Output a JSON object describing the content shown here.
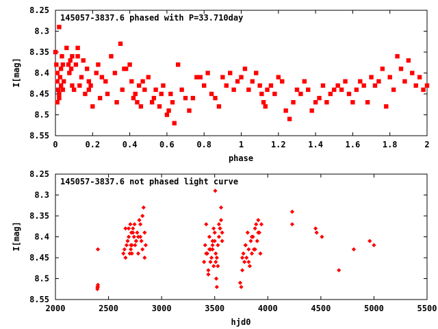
{
  "chart_data": [
    {
      "type": "scatter",
      "title": "145057-3837.6 phased with P=33.710day",
      "xlabel": "phase",
      "ylabel": "I[mag]",
      "xlim": [
        0,
        2
      ],
      "ylim": [
        8.55,
        8.25
      ],
      "y_inverted": true,
      "xticks": [
        "0",
        "0.2",
        "0.4",
        "0.6",
        "0.8",
        "1",
        "1.2",
        "1.4",
        "1.6",
        "1.8",
        "2"
      ],
      "yticks": [
        "8.25",
        "8.3",
        "8.35",
        "8.4",
        "8.45",
        "8.5",
        "8.55"
      ],
      "grid": false,
      "marker_color": "#ff0000",
      "series": [
        {
          "x": [
            0.0,
            0.005,
            0.01,
            0.01,
            0.015,
            0.02,
            0.02,
            0.025,
            0.03,
            0.03,
            0.035,
            0.04,
            0.04,
            0.045,
            0.02,
            0.01,
            0.06,
            0.07,
            0.08,
            0.075,
            0.085,
            0.09,
            0.09,
            0.1,
            0.11,
            0.12,
            0.12,
            0.13,
            0.14,
            0.15,
            0.16,
            0.17,
            0.18,
            0.19,
            0.2,
            0.18,
            0.22,
            0.23,
            0.24,
            0.25,
            0.27,
            0.28,
            0.3,
            0.32,
            0.33,
            0.35,
            0.36,
            0.37,
            0.38,
            0.4,
            0.41,
            0.42,
            0.43,
            0.44,
            0.45,
            0.46,
            0.47,
            0.48,
            0.5,
            0.52,
            0.53,
            0.54,
            0.56,
            0.57,
            0.58,
            0.6,
            0.61,
            0.62,
            0.63,
            0.64,
            0.66,
            0.68,
            0.7,
            0.72,
            0.74,
            0.76,
            0.78,
            0.8,
            0.82,
            0.84,
            0.86,
            0.88,
            0.9,
            0.92,
            0.94,
            0.96,
            0.98,
            1.0,
            1.02,
            1.04,
            1.06,
            1.08,
            1.1,
            1.11,
            1.12,
            1.13,
            1.14,
            1.16,
            1.18,
            1.2,
            1.22,
            1.24,
            1.26,
            1.28,
            1.3,
            1.32,
            1.34,
            1.36,
            1.38,
            1.4,
            1.42,
            1.44,
            1.46,
            1.48,
            1.5,
            1.52,
            1.54,
            1.56,
            1.58,
            1.6,
            1.62,
            1.64,
            1.66,
            1.68,
            1.7,
            1.72,
            1.74,
            1.76,
            1.78,
            1.8,
            1.82,
            1.84,
            1.86,
            1.88,
            1.9,
            1.92,
            1.94,
            1.96,
            1.98,
            2.0
          ],
          "y": [
            8.35,
            8.38,
            8.4,
            8.42,
            8.44,
            8.46,
            8.29,
            8.41,
            8.39,
            8.43,
            8.36,
            8.38,
            8.44,
            8.42,
            8.45,
            8.47,
            8.34,
            8.38,
            8.37,
            8.4,
            8.39,
            8.36,
            8.43,
            8.44,
            8.38,
            8.34,
            8.36,
            8.43,
            8.41,
            8.37,
            8.45,
            8.39,
            8.42,
            8.43,
            8.48,
            8.44,
            8.4,
            8.38,
            8.46,
            8.41,
            8.42,
            8.45,
            8.36,
            8.4,
            8.47,
            8.33,
            8.44,
            8.39,
            8.39,
            8.38,
            8.42,
            8.46,
            8.45,
            8.47,
            8.43,
            8.48,
            8.42,
            8.44,
            8.41,
            8.47,
            8.46,
            8.44,
            8.48,
            8.45,
            8.43,
            8.5,
            8.49,
            8.45,
            8.47,
            8.52,
            8.38,
            8.44,
            8.46,
            8.49,
            8.46,
            8.41,
            8.41,
            8.43,
            8.4,
            8.45,
            8.46,
            8.48,
            8.41,
            8.43,
            8.4,
            8.44,
            8.42,
            8.41,
            8.39,
            8.44,
            8.42,
            8.4,
            8.43,
            8.45,
            8.47,
            8.48,
            8.44,
            8.43,
            8.45,
            8.41,
            8.42,
            8.49,
            8.51,
            8.47,
            8.44,
            8.45,
            8.42,
            8.44,
            8.49,
            8.47,
            8.46,
            8.43,
            8.47,
            8.45,
            8.44,
            8.43,
            8.44,
            8.42,
            8.45,
            8.47,
            8.44,
            8.42,
            8.43,
            8.47,
            8.41,
            8.43,
            8.42,
            8.39,
            8.48,
            8.41,
            8.44,
            8.36,
            8.39,
            8.42,
            8.37,
            8.4,
            8.43,
            8.41,
            8.44,
            8.43
          ]
        }
      ]
    },
    {
      "type": "scatter",
      "title": "145057-3837.6 not phased light curve",
      "xlabel": "hjd0",
      "ylabel": "I[mag]",
      "xlim": [
        2000,
        5500
      ],
      "ylim": [
        8.55,
        8.25
      ],
      "y_inverted": true,
      "xticks": [
        "2000",
        "2500",
        "3000",
        "3500",
        "4000",
        "4500",
        "5000",
        "5500"
      ],
      "yticks": [
        "8.25",
        "8.3",
        "8.35",
        "8.4",
        "8.45",
        "8.5",
        "8.55"
      ],
      "grid": false,
      "marker_color": "#ff0000",
      "series": [
        {
          "x": [
            2395,
            2395,
            2400,
            2400,
            2400,
            2640,
            2650,
            2660,
            2670,
            2680,
            2690,
            2700,
            2705,
            2710,
            2715,
            2720,
            2730,
            2740,
            2745,
            2750,
            2760,
            2770,
            2780,
            2790,
            2800,
            2810,
            2820,
            2830,
            2840,
            2850,
            2660,
            2690,
            2710,
            2730,
            2760,
            2780,
            2800,
            2820,
            2840,
            2720,
            3400,
            3410,
            3420,
            3430,
            3440,
            3450,
            3460,
            3470,
            3480,
            3490,
            3500,
            3505,
            3510,
            3515,
            3520,
            3530,
            3540,
            3550,
            3560,
            3570,
            3420,
            3440,
            3460,
            3480,
            3500,
            3520,
            3540,
            3560,
            3450,
            3490,
            3530,
            3570,
            3480,
            3510,
            3550,
            3740,
            3750,
            3760,
            3770,
            3780,
            3790,
            3800,
            3810,
            3820,
            3830,
            3840,
            3850,
            3860,
            3870,
            3880,
            3890,
            3900,
            3910,
            3920,
            3930,
            3760,
            3790,
            3820,
            3850,
            3880,
            3910,
            3940,
            4230,
            4230,
            4450,
            4460,
            4510,
            4670,
            4810,
            4960,
            5000
          ],
          "y": [
            8.52,
            8.525,
            8.515,
            8.43,
            8.52,
            8.44,
            8.43,
            8.38,
            8.42,
            8.41,
            8.4,
            8.44,
            8.37,
            8.43,
            8.39,
            8.42,
            8.38,
            8.4,
            8.37,
            8.42,
            8.41,
            8.39,
            8.44,
            8.36,
            8.4,
            8.41,
            8.35,
            8.33,
            8.39,
            8.42,
            8.45,
            8.38,
            8.42,
            8.39,
            8.41,
            8.4,
            8.37,
            8.43,
            8.45,
            8.44,
            8.46,
            8.42,
            8.37,
            8.44,
            8.48,
            8.4,
            8.43,
            8.45,
            8.41,
            8.47,
            8.39,
            8.29,
            8.44,
            8.5,
            8.52,
            8.42,
            8.37,
            8.38,
            8.33,
            8.41,
            8.44,
            8.49,
            8.46,
            8.43,
            8.41,
            8.45,
            8.4,
            8.36,
            8.43,
            8.38,
            8.47,
            8.39,
            8.42,
            8.46,
            8.38,
            8.51,
            8.52,
            8.48,
            8.44,
            8.46,
            8.42,
            8.45,
            8.39,
            8.43,
            8.47,
            8.41,
            8.44,
            8.4,
            8.43,
            8.38,
            8.37,
            8.41,
            8.36,
            8.39,
            8.44,
            8.45,
            8.42,
            8.46,
            8.4,
            8.43,
            8.39,
            8.37,
            8.34,
            8.37,
            8.38,
            8.39,
            8.4,
            8.48,
            8.43,
            8.41,
            8.42
          ]
        }
      ]
    }
  ]
}
